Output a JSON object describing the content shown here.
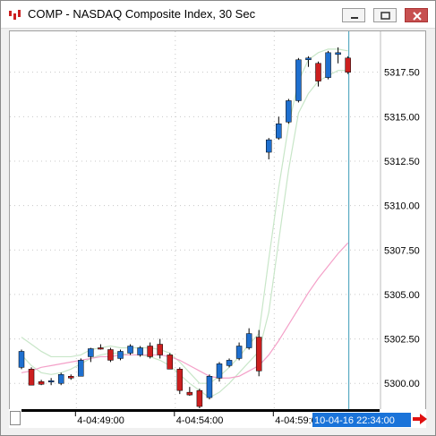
{
  "window": {
    "title": "COMP - NASDAQ Composite Index, 30 Sec"
  },
  "chart_data": {
    "type": "candlestick",
    "y_axis": {
      "ticks": [
        5300.0,
        5302.5,
        5305.0,
        5307.5,
        5310.0,
        5312.5,
        5315.0,
        5317.5
      ],
      "labels": [
        "5300.00",
        "5302.50",
        "5305.00",
        "5307.50",
        "5310.00",
        "5312.50",
        "5315.00",
        "5317.50"
      ],
      "ylim": [
        5298.5,
        5319.8
      ]
    },
    "x_axis": {
      "labels": [
        "4-04:49:00",
        "4-04:54:00",
        "4-04:59:00"
      ],
      "cursor_label": "10-04-16 22:34:00"
    },
    "grid": true,
    "candles": [
      {
        "i": 0,
        "open": 5300.9,
        "high": 5301.9,
        "low": 5300.8,
        "close": 5301.8
      },
      {
        "i": 1,
        "open": 5300.8,
        "high": 5300.9,
        "low": 5299.9,
        "close": 5299.9
      },
      {
        "i": 2,
        "open": 5300.1,
        "high": 5300.2,
        "low": 5299.9,
        "close": 5299.95
      },
      {
        "i": 3,
        "open": 5300.1,
        "high": 5300.3,
        "low": 5299.9,
        "close": 5300.15
      },
      {
        "i": 4,
        "open": 5300.0,
        "high": 5300.6,
        "low": 5299.9,
        "close": 5300.5
      },
      {
        "i": 5,
        "open": 5300.4,
        "high": 5300.5,
        "low": 5300.2,
        "close": 5300.3
      },
      {
        "i": 6,
        "open": 5300.4,
        "high": 5301.4,
        "low": 5300.4,
        "close": 5301.3
      },
      {
        "i": 7,
        "open": 5301.5,
        "high": 5302.0,
        "low": 5301.2,
        "close": 5301.95
      },
      {
        "i": 8,
        "open": 5302.0,
        "high": 5302.2,
        "low": 5301.9,
        "close": 5301.95
      },
      {
        "i": 9,
        "open": 5301.9,
        "high": 5302.0,
        "low": 5301.2,
        "close": 5301.3
      },
      {
        "i": 10,
        "open": 5301.4,
        "high": 5301.9,
        "low": 5301.3,
        "close": 5301.8
      },
      {
        "i": 11,
        "open": 5301.7,
        "high": 5302.2,
        "low": 5301.6,
        "close": 5302.1
      },
      {
        "i": 12,
        "open": 5301.6,
        "high": 5302.1,
        "low": 5301.5,
        "close": 5302.0
      },
      {
        "i": 13,
        "open": 5302.1,
        "high": 5302.3,
        "low": 5301.4,
        "close": 5301.5
      },
      {
        "i": 14,
        "open": 5302.2,
        "high": 5302.5,
        "low": 5301.4,
        "close": 5301.6
      },
      {
        "i": 15,
        "open": 5301.6,
        "high": 5301.7,
        "low": 5300.8,
        "close": 5300.8
      },
      {
        "i": 16,
        "open": 5300.8,
        "high": 5300.9,
        "low": 5299.4,
        "close": 5299.6
      },
      {
        "i": 17,
        "open": 5299.5,
        "high": 5299.8,
        "low": 5299.3,
        "close": 5299.35
      },
      {
        "i": 18,
        "open": 5299.6,
        "high": 5299.7,
        "low": 5298.6,
        "close": 5298.7
      },
      {
        "i": 19,
        "open": 5299.2,
        "high": 5300.5,
        "low": 5299.1,
        "close": 5300.4
      },
      {
        "i": 20,
        "open": 5300.3,
        "high": 5301.2,
        "low": 5300.1,
        "close": 5301.1
      },
      {
        "i": 21,
        "open": 5301.0,
        "high": 5301.4,
        "low": 5300.9,
        "close": 5301.3
      },
      {
        "i": 22,
        "open": 5301.4,
        "high": 5302.3,
        "low": 5301.3,
        "close": 5302.1
      },
      {
        "i": 23,
        "open": 5302.0,
        "high": 5303.1,
        "low": 5301.9,
        "close": 5302.8
      },
      {
        "i": 24,
        "open": 5302.6,
        "high": 5303.0,
        "low": 5300.4,
        "close": 5300.7
      },
      {
        "i": 25,
        "open": 5313.0,
        "high": 5313.8,
        "low": 5312.6,
        "close": 5313.7
      },
      {
        "i": 26,
        "open": 5313.8,
        "high": 5315.0,
        "low": 5313.7,
        "close": 5314.6
      },
      {
        "i": 27,
        "open": 5314.7,
        "high": 5316.0,
        "low": 5314.6,
        "close": 5315.9
      },
      {
        "i": 28,
        "open": 5315.9,
        "high": 5318.3,
        "low": 5315.8,
        "close": 5318.2
      },
      {
        "i": 29,
        "open": 5318.2,
        "high": 5318.4,
        "low": 5317.8,
        "close": 5318.3
      },
      {
        "i": 30,
        "open": 5318.0,
        "high": 5318.1,
        "low": 5316.7,
        "close": 5317.0
      },
      {
        "i": 31,
        "open": 5317.2,
        "high": 5318.7,
        "low": 5317.1,
        "close": 5318.6
      },
      {
        "i": 32,
        "open": 5318.5,
        "high": 5318.9,
        "low": 5318.0,
        "close": 5318.6
      },
      {
        "i": 33,
        "open": 5318.3,
        "high": 5318.4,
        "low": 5317.4,
        "close": 5317.5
      }
    ],
    "ma_fast_color": "#c8e6c8",
    "ma_slow_color": "#f4a0c8",
    "up_color": "#1e6fcf",
    "down_color": "#cc1f1f",
    "ma_upper": [
      5302.6,
      5302.2,
      5301.8,
      5301.5,
      5301.5,
      5301.5,
      5301.6,
      5301.9,
      5302.0,
      5302.1,
      5302.0,
      5302.0,
      5302.0,
      5302.0,
      5301.9,
      5301.7,
      5301.2,
      5300.6,
      5300.0,
      5300.0,
      5300.4,
      5300.9,
      5301.5,
      5302.2,
      5302.8,
      5307.0,
      5311.0,
      5314.5,
      5317.0,
      5318.2,
      5318.6,
      5318.8,
      5318.8,
      5318.7
    ],
    "ma_lower": [
      5301.6,
      5301.0,
      5300.6,
      5300.5,
      5300.6,
      5300.8,
      5301.1,
      5301.4,
      5301.6,
      5301.7,
      5301.7,
      5301.6,
      5301.6,
      5301.5,
      5301.3,
      5301.0,
      5300.5,
      5300.0,
      5299.6,
      5299.2,
      5299.5,
      5300.0,
      5300.6,
      5301.2,
      5301.8,
      5304.0,
      5308.0,
      5312.0,
      5315.2,
      5316.3,
      5317.0,
      5317.3,
      5317.6,
      5317.6
    ],
    "ma_slow": [
      5300.6,
      5300.7,
      5300.9,
      5301.0,
      5301.1,
      5301.2,
      5301.3,
      5301.4,
      5301.5,
      5301.5,
      5301.6,
      5301.6,
      5301.6,
      5301.6,
      5301.6,
      5301.5,
      5301.3,
      5301.0,
      5300.7,
      5300.4,
      5300.3,
      5300.3,
      5300.4,
      5300.7,
      5301.0,
      5301.6,
      5302.4,
      5303.3,
      5304.2,
      5305.1,
      5305.9,
      5306.6,
      5307.3,
      5307.9
    ]
  },
  "bottom": {
    "arrow_icon": "right-arrow-icon"
  }
}
